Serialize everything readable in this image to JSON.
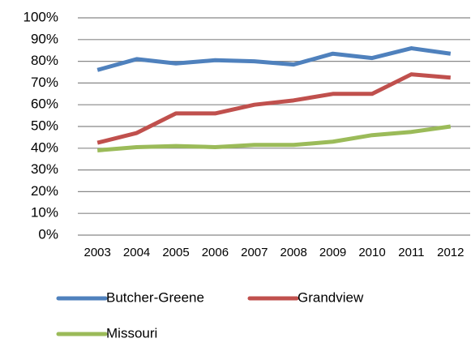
{
  "chart_data": {
    "type": "line",
    "categories": [
      "2003",
      "2004",
      "2005",
      "2006",
      "2007",
      "2008",
      "2009",
      "2010",
      "2011",
      "2012"
    ],
    "series": [
      {
        "name": "Butcher-Greene",
        "color": "#4f81bd",
        "values": [
          76,
          81,
          79,
          80.5,
          80,
          78.5,
          83.5,
          81.5,
          86,
          83.5
        ]
      },
      {
        "name": "Grandview",
        "color": "#c0504d",
        "values": [
          42.5,
          47,
          56,
          56,
          60,
          62,
          65,
          65,
          74,
          72.5
        ]
      },
      {
        "name": "Missouri",
        "color": "#9bbb59",
        "values": [
          39,
          40.5,
          41,
          40.5,
          41.5,
          41.5,
          43,
          46,
          47.5,
          50
        ]
      }
    ],
    "ylim": [
      0,
      100
    ],
    "yticks": [
      {
        "value": 0,
        "label": "0%"
      },
      {
        "value": 10,
        "label": "10%"
      },
      {
        "value": 20,
        "label": "20%"
      },
      {
        "value": 30,
        "label": "30%"
      },
      {
        "value": 40,
        "label": "40%"
      },
      {
        "value": 50,
        "label": "50%"
      },
      {
        "value": 60,
        "label": "60%"
      },
      {
        "value": 70,
        "label": "70%"
      },
      {
        "value": 80,
        "label": "80%"
      },
      {
        "value": 90,
        "label": "90%"
      },
      {
        "value": 100,
        "label": "100%"
      }
    ],
    "grid": true,
    "legend": "bottom"
  }
}
